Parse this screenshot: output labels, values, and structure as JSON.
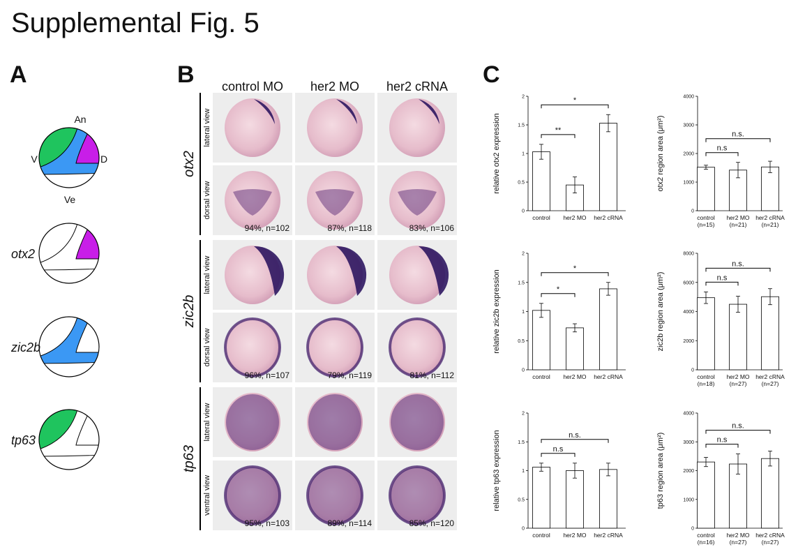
{
  "title": "Supplemental Fig. 5",
  "panel_a": {
    "label": "A",
    "orientation": {
      "animal": "An",
      "ventral": "V",
      "dorsal": "D",
      "vegetal": "Ve"
    },
    "genes": [
      "otx2",
      "zic2b",
      "tp63"
    ]
  },
  "panel_b": {
    "label": "B",
    "columns": [
      "control MO",
      "her2 MO",
      "her2 cRNA"
    ],
    "rows": [
      {
        "gene": "otx2",
        "views": [
          "lateral view",
          "dorsal view"
        ],
        "scores": [
          "94%, n=102",
          "87%, n=118",
          "83%, n=106"
        ]
      },
      {
        "gene": "zic2b",
        "views": [
          "lateral view",
          "dorsal view"
        ],
        "scores": [
          "96%, n=107",
          "79%, n=119",
          "81%, n=112"
        ]
      },
      {
        "gene": "tp63",
        "views": [
          "lateral view",
          "ventral view"
        ],
        "scores": [
          "95%, n=103",
          "89%, n=114",
          "85%, n=120"
        ]
      }
    ]
  },
  "panel_c": {
    "label": "C"
  },
  "chart_data": [
    {
      "type": "bar",
      "ylabel": "relative otx2 expression",
      "categories": [
        "control",
        "her2 MO",
        "her2 cRNA"
      ],
      "values": [
        1.03,
        0.45,
        1.53
      ],
      "errors": [
        0.13,
        0.14,
        0.15
      ],
      "color": "#ffffff",
      "ylim": [
        0,
        2
      ],
      "yticks": [
        0,
        0.5,
        1,
        1.5,
        2
      ],
      "brackets": [
        {
          "pair": [
            0,
            1
          ],
          "label": "**"
        },
        {
          "pair": [
            0,
            2
          ],
          "label": "*"
        }
      ]
    },
    {
      "type": "bar",
      "ylabel": "otx2 region area (μm²)",
      "categories": [
        "control",
        "her2 MO",
        "her2 cRNA"
      ],
      "n_labels": [
        "(n=15)",
        "(n=21)",
        "(n=21)"
      ],
      "values": [
        1520,
        1420,
        1530
      ],
      "errors": [
        70,
        270,
        200
      ],
      "color": "#ffffff",
      "ylim": [
        0,
        4000
      ],
      "yticks": [
        0,
        1000,
        2000,
        3000,
        4000
      ],
      "brackets": [
        {
          "pair": [
            0,
            1
          ],
          "label": "n.s"
        },
        {
          "pair": [
            0,
            2
          ],
          "label": "n.s."
        }
      ]
    },
    {
      "type": "bar",
      "ylabel": "relative zic2b expression",
      "categories": [
        "control",
        "her2 MO",
        "her2 cRNA"
      ],
      "values": [
        1.02,
        0.72,
        1.39
      ],
      "errors": [
        0.12,
        0.07,
        0.11
      ],
      "color": "#ffffff",
      "ylim": [
        0,
        2
      ],
      "yticks": [
        0,
        0.5,
        1,
        1.5,
        2
      ],
      "brackets": [
        {
          "pair": [
            0,
            1
          ],
          "label": "*"
        },
        {
          "pair": [
            0,
            2
          ],
          "label": "*"
        }
      ]
    },
    {
      "type": "bar",
      "ylabel": "zic2b region area (μm²)",
      "categories": [
        "control",
        "her2 MO",
        "her2 cRNA"
      ],
      "n_labels": [
        "(n=18)",
        "(n=27)",
        "(n=27)"
      ],
      "values": [
        4950,
        4500,
        5020
      ],
      "errors": [
        400,
        550,
        550
      ],
      "color": "#ffffff",
      "ylim": [
        0,
        8000
      ],
      "yticks": [
        0,
        2000,
        4000,
        6000,
        8000
      ],
      "brackets": [
        {
          "pair": [
            0,
            1
          ],
          "label": "n.s"
        },
        {
          "pair": [
            0,
            2
          ],
          "label": "n.s."
        }
      ]
    },
    {
      "type": "bar",
      "ylabel": "relative tp63 expression",
      "categories": [
        "control",
        "her2 MO",
        "her2 cRNA"
      ],
      "values": [
        1.06,
        1.0,
        1.02
      ],
      "errors": [
        0.07,
        0.13,
        0.11
      ],
      "color": "#ffffff",
      "ylim": [
        0,
        2
      ],
      "yticks": [
        0,
        0.5,
        1,
        1.5,
        2
      ],
      "brackets": [
        {
          "pair": [
            0,
            1
          ],
          "label": "n.s"
        },
        {
          "pair": [
            0,
            2
          ],
          "label": "n.s."
        }
      ]
    },
    {
      "type": "bar",
      "ylabel": "tp63 region area (μm²)",
      "categories": [
        "control",
        "her2 MO",
        "her2 cRNA"
      ],
      "n_labels": [
        "(n=16)",
        "(n=27)",
        "(n=27)"
      ],
      "values": [
        2300,
        2230,
        2420
      ],
      "errors": [
        160,
        350,
        260
      ],
      "color": "#ffffff",
      "ylim": [
        0,
        4000
      ],
      "yticks": [
        0,
        1000,
        2000,
        3000,
        4000
      ],
      "brackets": [
        {
          "pair": [
            0,
            1
          ],
          "label": "n.s"
        },
        {
          "pair": [
            0,
            2
          ],
          "label": "n.s."
        }
      ]
    }
  ]
}
